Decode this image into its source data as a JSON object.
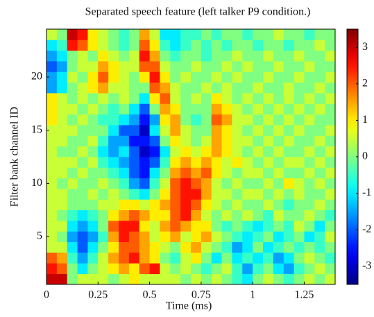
{
  "chart_data": {
    "type": "heatmap",
    "title": "Separated speech feature (left talker P9 condition.)",
    "x_label": "Time (ms)",
    "y_label": "Filter bank channel ID",
    "colormap": "jet",
    "x": [
      0.025,
      0.075,
      0.125,
      0.175,
      0.225,
      0.275,
      0.325,
      0.375,
      0.425,
      0.475,
      0.525,
      0.575,
      0.625,
      0.675,
      0.725,
      0.775,
      0.825,
      0.875,
      0.925,
      0.975,
      1.025,
      1.075,
      1.125,
      1.175,
      1.225,
      1.275,
      1.325,
      1.375
    ],
    "y": [
      1,
      2,
      3,
      4,
      5,
      6,
      7,
      8,
      9,
      10,
      11,
      12,
      13,
      14,
      15,
      16,
      17,
      18,
      19,
      20,
      21,
      22,
      23,
      24
    ],
    "z": [
      [
        3,
        3,
        0,
        0.5,
        0.5,
        0.5,
        0,
        0.5,
        1,
        0.5,
        0.5,
        0.5,
        0.5,
        0,
        0.5,
        0,
        0.5,
        0,
        -0.5,
        -1,
        0,
        0.5,
        0,
        -0.5,
        0,
        0.5,
        0,
        0.5
      ],
      [
        2.5,
        2,
        0,
        -1,
        0,
        0.5,
        1,
        1.5,
        1,
        2,
        2.5,
        0.5,
        0,
        0.5,
        0,
        -0.5,
        0,
        0.5,
        -0.5,
        -1.5,
        -0.5,
        0,
        -1,
        -1.5,
        -0.5,
        0,
        0.5,
        0
      ],
      [
        2,
        1.5,
        -0.5,
        -1.5,
        -0.5,
        0.5,
        1.5,
        2,
        2.5,
        1.5,
        1,
        0,
        -0.5,
        0.5,
        1,
        0,
        -1,
        0,
        -1,
        -0.5,
        -1,
        -0.5,
        -1.5,
        -1,
        0,
        0.5,
        0,
        -0.5
      ],
      [
        0.5,
        0.5,
        -1,
        -2,
        -1,
        0,
        1,
        2,
        2,
        1.5,
        1,
        0.5,
        0,
        1,
        1.5,
        0.5,
        0,
        -0.5,
        -1.5,
        -1,
        0,
        -1,
        -0.5,
        0,
        -0.5,
        0,
        -0.5,
        0
      ],
      [
        0.5,
        0,
        -1.5,
        -2,
        -1.5,
        -0.5,
        1.5,
        2.5,
        2,
        1.5,
        0.5,
        1,
        1.5,
        0.5,
        1,
        1.5,
        0.5,
        0,
        -0.5,
        -1,
        -0.5,
        0,
        -1,
        -0.5,
        0,
        -1,
        -0.5,
        0.5
      ],
      [
        0.5,
        0.5,
        -1,
        -1.5,
        -1,
        0,
        2,
        2.5,
        2.5,
        1,
        0.5,
        1.5,
        2,
        1.5,
        1,
        1,
        0,
        -0.5,
        0,
        -0.5,
        -1,
        -0.5,
        0,
        -0.5,
        0.5,
        0,
        -1,
        0
      ],
      [
        0.5,
        0,
        -0.5,
        -1,
        -0.5,
        0,
        1,
        1.5,
        2,
        1.5,
        1,
        1,
        2,
        2.5,
        1.5,
        0.5,
        0,
        0.5,
        0,
        0.5,
        0,
        -0.5,
        0.5,
        0,
        0,
        0.5,
        0,
        -0.5
      ],
      [
        0.5,
        0.5,
        0,
        0,
        0,
        0.5,
        0.5,
        1,
        1,
        0.5,
        1,
        1.5,
        2,
        2.5,
        2,
        1,
        0.5,
        0,
        0.5,
        0,
        0,
        0.5,
        0,
        -0.5,
        0,
        0,
        0.5,
        0
      ],
      [
        0.5,
        0.5,
        0,
        0,
        0.5,
        0,
        0.5,
        0,
        -0.5,
        -1,
        0,
        1,
        2,
        2.5,
        2.5,
        1.5,
        0.5,
        0.5,
        0,
        0.5,
        0.5,
        0,
        0.5,
        0,
        0.5,
        0,
        0,
        0.5
      ],
      [
        0.5,
        0,
        0.5,
        0,
        0,
        0.5,
        0,
        -0.5,
        -1.5,
        -2,
        -0.5,
        0.5,
        2,
        2.5,
        2,
        1.5,
        0.5,
        0,
        0.5,
        0,
        0,
        0.5,
        0,
        1,
        0.5,
        0,
        0.5,
        0
      ],
      [
        0.5,
        0.5,
        0,
        0.5,
        0,
        0,
        -0.5,
        -1,
        -2,
        -2.5,
        -1,
        0,
        1.5,
        2,
        1.5,
        2,
        1,
        0.5,
        0,
        0.5,
        0.5,
        0,
        0.5,
        0,
        0,
        0.5,
        0,
        0.5
      ],
      [
        0.5,
        0.5,
        0.5,
        0,
        0.5,
        -0.5,
        -1,
        -1.5,
        -2,
        -2.5,
        -2,
        -0.5,
        1,
        1.5,
        1,
        1.5,
        1,
        0.5,
        1,
        0.5,
        0,
        0.5,
        0,
        0.5,
        0.5,
        0,
        0.5,
        0
      ],
      [
        0.5,
        0,
        0,
        0.5,
        0,
        -1,
        -1.5,
        -1,
        -2,
        -3,
        -2.5,
        -1,
        0.5,
        1,
        0.5,
        1,
        1.5,
        1,
        0.5,
        0,
        0.5,
        0,
        0.5,
        0,
        0,
        0.5,
        0,
        0.5
      ],
      [
        0.5,
        0.5,
        0,
        0,
        0.5,
        -0.5,
        -1.5,
        -1.5,
        -2.5,
        -2.5,
        -2,
        0,
        1,
        0.5,
        0,
        0.5,
        1.5,
        1,
        0.5,
        0.5,
        0,
        0.5,
        0,
        0.5,
        0,
        0,
        0.5,
        0
      ],
      [
        0.5,
        0.5,
        0.5,
        0,
        0,
        0,
        -1,
        -2,
        -2,
        -3,
        -1,
        0.5,
        1.5,
        0.5,
        0,
        0,
        1.5,
        1,
        0.5,
        0,
        0.5,
        0,
        0.5,
        0,
        0.5,
        0,
        0,
        0.5
      ],
      [
        1,
        0.5,
        0,
        0.5,
        0,
        -0.5,
        -0.5,
        -1,
        -1.5,
        -2.5,
        -1.5,
        1,
        1.5,
        0,
        -0.5,
        0,
        2,
        1.5,
        0.5,
        0.5,
        0,
        0.5,
        0,
        0.5,
        0,
        0.5,
        0,
        0
      ],
      [
        1,
        0.5,
        0.5,
        0,
        0.5,
        0,
        -0.5,
        0,
        -1,
        -2,
        0,
        1.5,
        1,
        0,
        0,
        0,
        1.5,
        1,
        0.5,
        0,
        0.5,
        0,
        0.5,
        0,
        0.5,
        0,
        0.5,
        0
      ],
      [
        1,
        0.5,
        0,
        0.5,
        0,
        0.5,
        0,
        0.5,
        0,
        -1,
        1,
        2,
        0.5,
        0,
        0.5,
        0,
        1,
        0.5,
        0,
        0.5,
        0,
        0.5,
        0,
        0.5,
        0,
        0.5,
        0,
        0.5
      ],
      [
        -1.5,
        -1,
        0,
        0.5,
        1,
        1.5,
        0.5,
        0.5,
        0,
        0,
        2,
        1.5,
        0.5,
        0,
        0,
        0.5,
        0,
        0.5,
        0,
        0,
        0.5,
        0,
        0,
        0.5,
        0,
        0,
        0.5,
        0
      ],
      [
        -1.5,
        -1,
        0.5,
        0,
        1,
        2,
        1,
        0.5,
        0,
        1,
        2.5,
        1,
        0,
        0.5,
        0,
        0,
        0.5,
        0,
        0.5,
        0,
        0,
        0.5,
        0,
        0,
        0.5,
        0,
        0,
        0.5
      ],
      [
        -2,
        -1.5,
        0,
        0.5,
        0.5,
        1.5,
        1,
        0.5,
        0.5,
        2,
        2,
        0.5,
        0,
        0,
        0.5,
        0,
        0,
        0.5,
        0,
        0.5,
        0,
        0,
        0.5,
        0,
        0,
        0.5,
        0,
        0
      ],
      [
        -1.5,
        -1,
        0,
        0.5,
        0,
        1,
        0.5,
        0,
        0.5,
        2.5,
        1.5,
        0,
        -0.5,
        0,
        0,
        -0.5,
        0,
        0,
        0.5,
        0,
        0,
        0.5,
        0,
        0,
        0.5,
        0,
        0,
        0.5
      ],
      [
        -1,
        -0.5,
        2.5,
        2,
        1,
        0.5,
        0,
        -0.5,
        0,
        2,
        1,
        -0.5,
        -1,
        -0.5,
        0,
        -0.5,
        0,
        -0.5,
        0,
        0,
        -0.5,
        0,
        0,
        -0.5,
        0,
        0,
        0.5,
        0
      ],
      [
        0.5,
        0,
        3,
        2.5,
        1,
        0.5,
        0,
        -0.5,
        0,
        1.5,
        0.5,
        -1,
        -1,
        -0.5,
        -0.5,
        0,
        -0.5,
        0,
        0,
        -0.5,
        0,
        0,
        0.5,
        0,
        0,
        -0.5,
        0,
        0
      ]
    ],
    "xlim": [
      0,
      1.4
    ],
    "xticks": [
      0,
      0.25,
      0.5,
      0.75,
      1,
      1.25
    ],
    "ylim": [
      0.5,
      24.5
    ],
    "yticks": [
      5,
      10,
      15,
      20
    ],
    "zlim": [
      -3.5,
      3.5
    ],
    "zticks": [
      -3,
      -2,
      -1,
      0,
      1,
      2,
      3
    ]
  }
}
